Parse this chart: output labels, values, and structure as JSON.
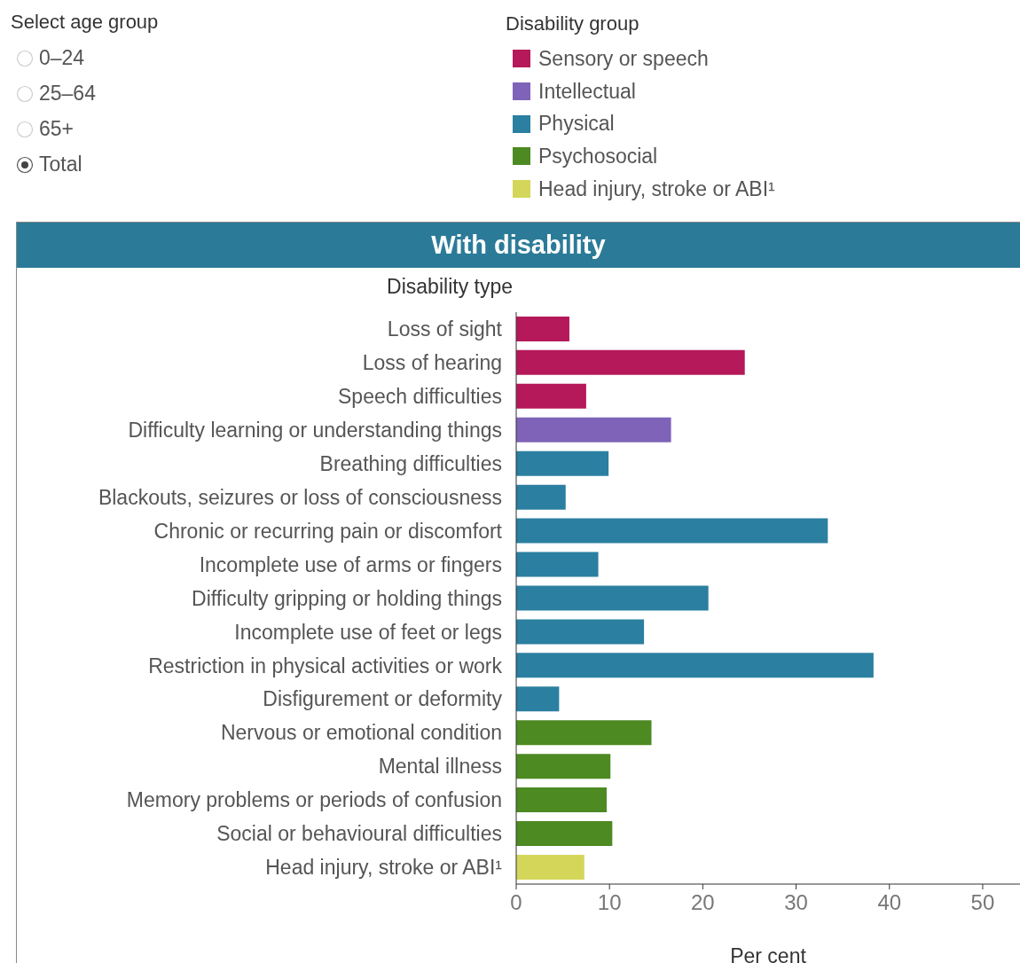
{
  "chart_data": {
    "type": "bar",
    "orientation": "horizontal",
    "stacked": true,
    "title": "With disability",
    "ylabel": "Disability type",
    "xlabel": "Per cent",
    "legend_title": "Disability group",
    "legend": "top",
    "annotations": [
      "Select age group",
      "0–24",
      "25–64",
      "65+",
      "Total"
    ],
    "categories": [
      "Loss of sight",
      "Loss of hearing",
      "Speech difficulties",
      "Difficulty learning or understanding things",
      "Breathing difficulties",
      "Blackouts, seizures or loss of consciousness",
      "Chronic or recurring pain or discomfort",
      "Incomplete use of arms or fingers",
      "Difficulty gripping or holding things",
      "Incomplete use of feet or legs",
      "Restriction in physical activities or work",
      "Disfigurement or deformity",
      "Nervous or emotional condition",
      "Mental illness",
      "Memory problems or periods of confusion",
      "Social or behavioural difficulties",
      "Head injury, stroke or ABI¹"
    ],
    "series": [
      {
        "name": "Sensory or speech",
        "color": "#b5195a",
        "values": [
          5.7,
          24.5,
          7.5,
          null,
          null,
          null,
          null,
          null,
          null,
          null,
          null,
          null,
          null,
          null,
          null,
          null,
          null
        ]
      },
      {
        "name": "Intellectual",
        "color": "#7e63b8",
        "values": [
          null,
          null,
          null,
          16.6,
          null,
          null,
          null,
          null,
          null,
          null,
          null,
          null,
          null,
          null,
          null,
          null,
          null
        ]
      },
      {
        "name": "Physical",
        "color": "#2b7fa0",
        "values": [
          null,
          null,
          null,
          null,
          9.9,
          5.3,
          33.4,
          8.8,
          20.6,
          13.7,
          38.3,
          4.6,
          null,
          null,
          null,
          null,
          null
        ]
      },
      {
        "name": "Psychosocial",
        "color": "#4d8a22",
        "values": [
          null,
          null,
          null,
          null,
          null,
          null,
          null,
          null,
          null,
          null,
          null,
          null,
          14.5,
          10.1,
          9.7,
          10.3,
          null
        ]
      },
      {
        "name": "Head injury, stroke or ABI¹",
        "color": "#d4d65a",
        "values": [
          null,
          null,
          null,
          null,
          null,
          null,
          null,
          null,
          null,
          null,
          null,
          null,
          null,
          null,
          null,
          null,
          7.3
        ]
      }
    ],
    "xlim": [
      0,
      54
    ],
    "xticks": [
      0,
      10,
      20,
      30,
      40,
      50
    ]
  }
}
